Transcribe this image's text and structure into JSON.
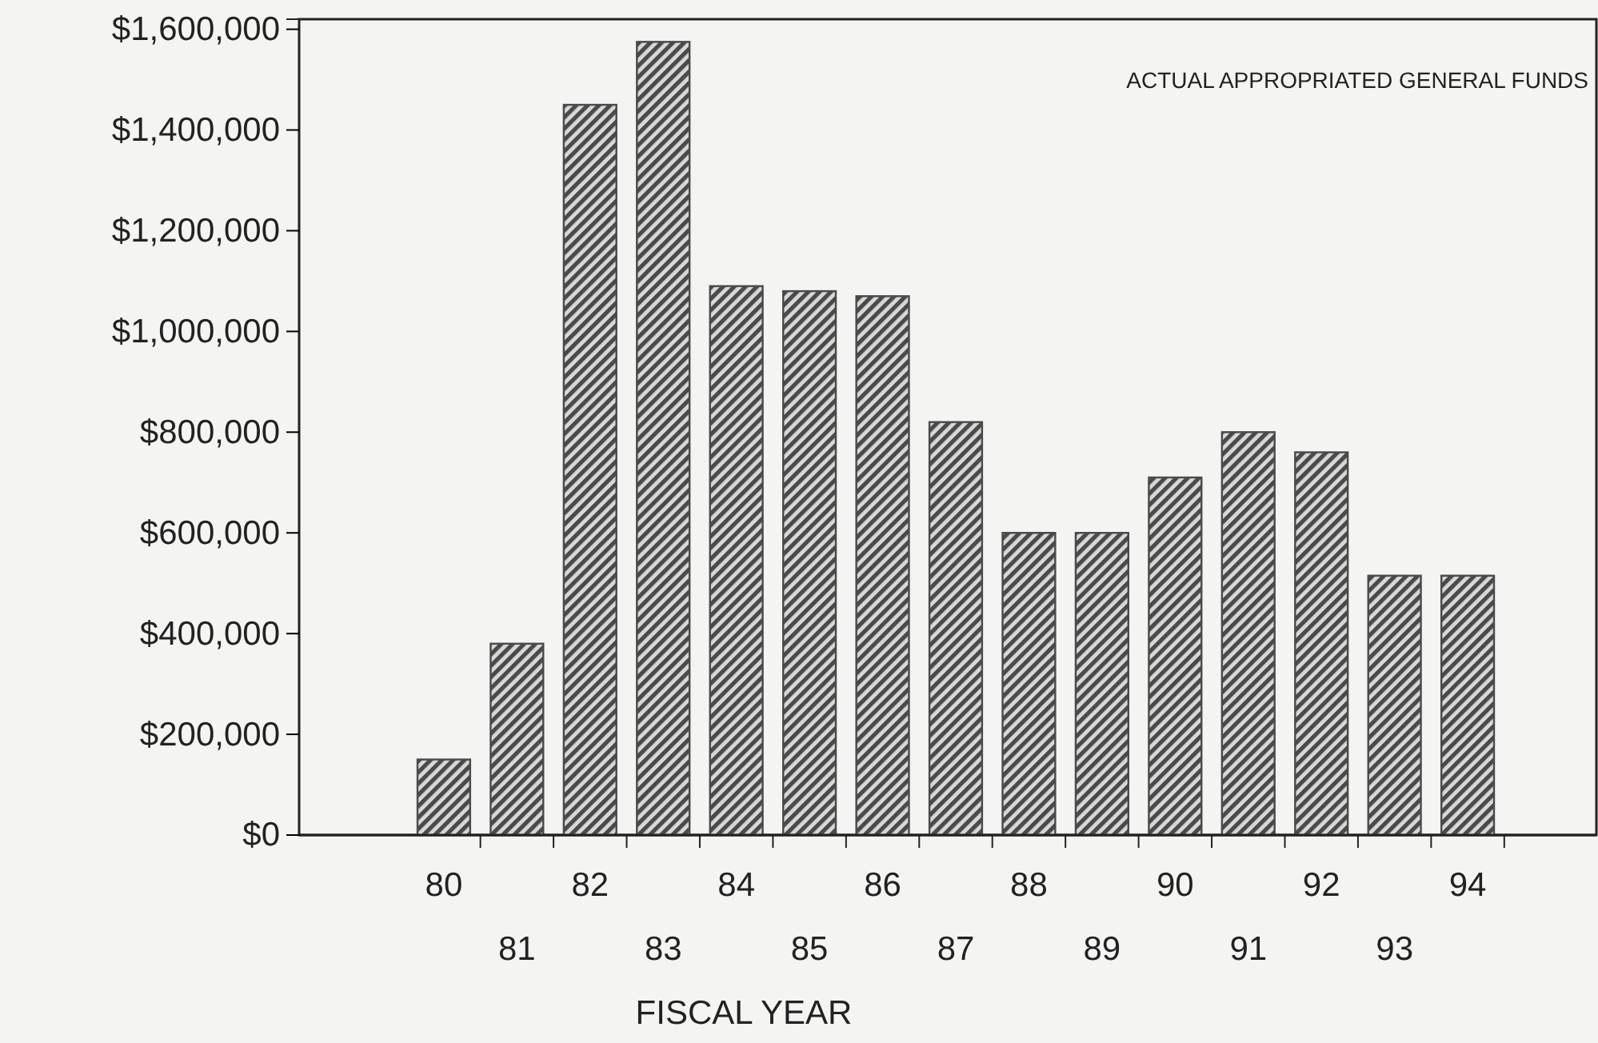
{
  "chart_data": {
    "type": "bar",
    "xlabel": "FISCAL YEAR",
    "categories": [
      "80",
      "81",
      "82",
      "83",
      "84",
      "85",
      "86",
      "87",
      "88",
      "89",
      "90",
      "91",
      "92",
      "93",
      "94"
    ],
    "values": [
      150000,
      380000,
      1450000,
      1575000,
      1090000,
      1080000,
      1070000,
      820000,
      600000,
      600000,
      710000,
      800000,
      760000,
      515000,
      515000
    ],
    "color": "#4a4a4a",
    "ylim": [
      0,
      1620000
    ],
    "yticks": [
      {
        "value": 0,
        "label": "$0"
      },
      {
        "value": 200000,
        "label": "$200,000"
      },
      {
        "value": 400000,
        "label": "$400,000"
      },
      {
        "value": 600000,
        "label": "$600,000"
      },
      {
        "value": 800000,
        "label": "$800,000"
      },
      {
        "value": 1000000,
        "label": "$1,000,000"
      },
      {
        "value": 1200000,
        "label": "$1,200,000"
      },
      {
        "value": 1400000,
        "label": "$1,400,000"
      },
      {
        "value": 1600000,
        "label": "$1,600,000"
      }
    ],
    "annotations": [
      "ACTUAL APPROPRIATED GENERAL FUNDS"
    ],
    "grid": false
  }
}
